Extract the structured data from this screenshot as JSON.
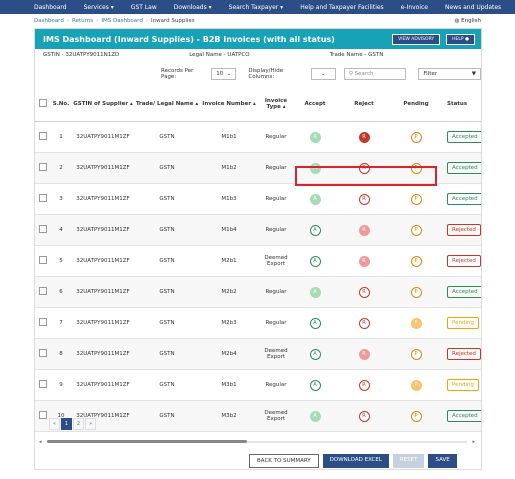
{
  "topnav": [
    "Dashboard",
    "Services ▾",
    "GST Law",
    "Downloads ▾",
    "Search Taxpayer ▾",
    "Help and Taxpayer Facilities",
    "e-Invoice",
    "News and Updates"
  ],
  "breadcrumb": {
    "b1": "Dashboard",
    "b2": "Returns",
    "b3": "IMS Dashboard",
    "b4": "Inward Supplies",
    "language": "English"
  },
  "header": {
    "title": "IMS Dashboard (Inward Supplies) - B2B Invoices (with all status)",
    "advisory_button": "VIEW ADVISORY",
    "help_button": "HELP"
  },
  "info": {
    "gstin": "GSTIN - 32UATPY9011N1ZD",
    "legal_name": "Legal Name - UATPCO",
    "trade_name": "Trade Name - GSTN"
  },
  "controls": {
    "records_label": "Records Per Page:",
    "records_value": "10",
    "display_label": "Display/Hide Columns:",
    "search_placeholder": "Search",
    "filter_label": "Filter"
  },
  "columns": {
    "sno": "S.No.",
    "gstin": "GSTIN of Supplier",
    "trade": "Trade/ Legal Name",
    "invoice": "Invoice Number",
    "type": "Invoice Type",
    "accept": "Accept",
    "reject": "Reject",
    "pending": "Pending",
    "status": "Status"
  },
  "rows": [
    {
      "sno": "1",
      "gstin": "32UATPY9011M1ZF",
      "trade": "GSTN",
      "invoice": "M1b1",
      "type": "Regular",
      "accept": "A",
      "reject": "R",
      "pending": "P",
      "status": "Accepted"
    },
    {
      "sno": "2",
      "gstin": "32UATPY9011M1ZF",
      "trade": "GSTN",
      "invoice": "M1b2",
      "type": "Regular",
      "accept": "A",
      "reject": "R",
      "pending": "P",
      "status": "Accepted"
    },
    {
      "sno": "3",
      "gstin": "32UATPY9011M1ZF",
      "trade": "GSTN",
      "invoice": "M1b3",
      "type": "Regular",
      "accept": "A",
      "reject": "R",
      "pending": "P",
      "status": "Accepted"
    },
    {
      "sno": "4",
      "gstin": "32UATPY9011M1ZF",
      "trade": "GSTN",
      "invoice": "M1b4",
      "type": "Regular",
      "accept": "A",
      "reject": "R",
      "pending": "P",
      "status": "Rejected"
    },
    {
      "sno": "5",
      "gstin": "32UATPY9011M1ZF",
      "trade": "GSTN",
      "invoice": "M2b1",
      "type": "Deemed Export",
      "accept": "A",
      "reject": "R",
      "pending": "P",
      "status": "Rejected"
    },
    {
      "sno": "6",
      "gstin": "32UATPY9011M1ZF",
      "trade": "GSTN",
      "invoice": "M2b2",
      "type": "Regular",
      "accept": "A",
      "reject": "R",
      "pending": "P",
      "status": "Accepted"
    },
    {
      "sno": "7",
      "gstin": "32UATPY9011M1ZF",
      "trade": "GSTN",
      "invoice": "M2b3",
      "type": "Regular",
      "accept": "A",
      "reject": "R",
      "pending": "P",
      "status": "Pending"
    },
    {
      "sno": "8",
      "gstin": "32UATPY9011M1ZF",
      "trade": "GSTN",
      "invoice": "M2b4",
      "type": "Deemed Export",
      "accept": "A",
      "reject": "R",
      "pending": "P",
      "status": "Rejected"
    },
    {
      "sno": "9",
      "gstin": "32UATPY9011M1ZF",
      "trade": "GSTN",
      "invoice": "M3b1",
      "type": "Regular",
      "accept": "A",
      "reject": "R",
      "pending": "P",
      "status": "Pending"
    },
    {
      "sno": "10",
      "gstin": "32UATPY9011M1ZF",
      "trade": "GSTN",
      "invoice": "M3b2",
      "type": "Deemed Export",
      "accept": "A",
      "reject": "R",
      "pending": "P",
      "status": "Accepted"
    }
  ],
  "pagination": {
    "prev": "«",
    "p1": "1",
    "p2": "2",
    "next": "»"
  },
  "footer": {
    "back": "BACK TO SUMMARY",
    "download": "DOWNLOAD EXCEL",
    "reset": "RESET",
    "save": "SAVE"
  }
}
